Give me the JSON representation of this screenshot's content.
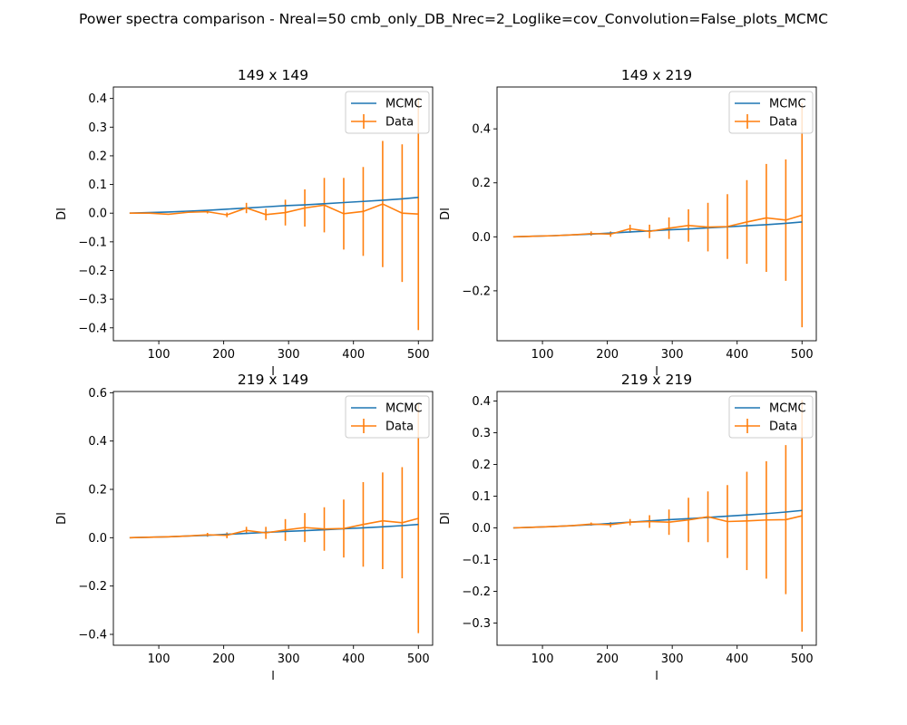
{
  "figure": {
    "suptitle": "Power spectra comparison - Nreal=50 cmb_only_DB_Nrec=2_Loglike=cov_Convolution=False_plots_MCMC",
    "colors": {
      "mcmc": "#1f77b4",
      "data": "#ff7f0e"
    }
  },
  "chart_data": [
    {
      "type": "line",
      "title": "149 x 149",
      "xlabel": "l",
      "ylabel": "Dl",
      "xlim": [
        30,
        522
      ],
      "ylim": [
        -0.445,
        0.44
      ],
      "xticks": [
        100,
        200,
        300,
        400,
        500
      ],
      "yticks": [
        -0.4,
        -0.3,
        -0.2,
        -0.1,
        0.0,
        0.1,
        0.2,
        0.3,
        0.4
      ],
      "ytick_labels": [
        "−0.4",
        "−0.3",
        "−0.2",
        "−0.1",
        "0.0",
        "0.1",
        "0.2",
        "0.3",
        "0.4"
      ],
      "legend": [
        "MCMC",
        "Data"
      ],
      "legend_loc": "upper right",
      "series": [
        {
          "name": "MCMC",
          "x": [
            55,
            85,
            115,
            145,
            175,
            205,
            235,
            265,
            295,
            325,
            355,
            385,
            415,
            445,
            475,
            500
          ],
          "y": [
            0.0,
            0.002,
            0.004,
            0.007,
            0.01,
            0.014,
            0.018,
            0.022,
            0.026,
            0.029,
            0.033,
            0.037,
            0.041,
            0.045,
            0.05,
            0.055
          ]
        },
        {
          "name": "Data",
          "x": [
            55,
            85,
            115,
            145,
            175,
            205,
            235,
            265,
            295,
            325,
            355,
            385,
            415,
            445,
            475,
            500
          ],
          "y": [
            0.0,
            0.0,
            -0.004,
            0.003,
            0.005,
            -0.006,
            0.018,
            -0.005,
            0.002,
            0.018,
            0.028,
            -0.002,
            0.006,
            0.032,
            0.0,
            -0.003
          ],
          "err": [
            0.0,
            0.0,
            0.0,
            0.0,
            0.006,
            0.008,
            0.018,
            0.02,
            0.045,
            0.065,
            0.095,
            0.125,
            0.155,
            0.22,
            0.24,
            0.405
          ]
        }
      ]
    },
    {
      "type": "line",
      "title": "149 x 219",
      "xlabel": "l",
      "ylabel": "Dl",
      "xlim": [
        30,
        522
      ],
      "ylim": [
        -0.385,
        0.555
      ],
      "xticks": [
        100,
        200,
        300,
        400,
        500
      ],
      "yticks": [
        -0.2,
        0.0,
        0.2,
        0.4
      ],
      "ytick_labels": [
        "−0.2",
        "0.0",
        "0.2",
        "0.4"
      ],
      "legend": [
        "MCMC",
        "Data"
      ],
      "legend_loc": "upper right",
      "series": [
        {
          "name": "MCMC",
          "x": [
            55,
            85,
            115,
            145,
            175,
            205,
            235,
            265,
            295,
            325,
            355,
            385,
            415,
            445,
            475,
            500
          ],
          "y": [
            0.0,
            0.002,
            0.004,
            0.007,
            0.01,
            0.014,
            0.018,
            0.022,
            0.026,
            0.029,
            0.033,
            0.037,
            0.041,
            0.045,
            0.05,
            0.055
          ]
        },
        {
          "name": "Data",
          "x": [
            55,
            85,
            115,
            145,
            175,
            205,
            235,
            265,
            295,
            325,
            355,
            385,
            415,
            445,
            475,
            500
          ],
          "y": [
            0.0,
            0.002,
            0.004,
            0.007,
            0.012,
            0.01,
            0.03,
            0.02,
            0.032,
            0.042,
            0.036,
            0.038,
            0.055,
            0.07,
            0.062,
            0.08
          ],
          "err": [
            0.0,
            0.0,
            0.0,
            0.0,
            0.008,
            0.01,
            0.015,
            0.025,
            0.04,
            0.06,
            0.09,
            0.12,
            0.155,
            0.2,
            0.225,
            0.415
          ]
        }
      ]
    },
    {
      "type": "line",
      "title": "219 x 149",
      "xlabel": "l",
      "ylabel": "Dl",
      "xlim": [
        30,
        522
      ],
      "ylim": [
        -0.445,
        0.605
      ],
      "xticks": [
        100,
        200,
        300,
        400,
        500
      ],
      "yticks": [
        -0.4,
        -0.2,
        0.0,
        0.2,
        0.4,
        0.6
      ],
      "ytick_labels": [
        "−0.4",
        "−0.2",
        "0.0",
        "0.2",
        "0.4",
        "0.6"
      ],
      "legend": [
        "MCMC",
        "Data"
      ],
      "legend_loc": "upper right",
      "series": [
        {
          "name": "MCMC",
          "x": [
            55,
            85,
            115,
            145,
            175,
            205,
            235,
            265,
            295,
            325,
            355,
            385,
            415,
            445,
            475,
            500
          ],
          "y": [
            0.0,
            0.002,
            0.004,
            0.007,
            0.01,
            0.014,
            0.018,
            0.022,
            0.026,
            0.029,
            0.033,
            0.037,
            0.041,
            0.045,
            0.05,
            0.055
          ]
        },
        {
          "name": "Data",
          "x": [
            55,
            85,
            115,
            145,
            175,
            205,
            235,
            265,
            295,
            325,
            355,
            385,
            415,
            445,
            475,
            500
          ],
          "y": [
            0.0,
            0.002,
            0.004,
            0.007,
            0.012,
            0.01,
            0.03,
            0.02,
            0.032,
            0.042,
            0.036,
            0.038,
            0.055,
            0.07,
            0.062,
            0.08
          ],
          "err": [
            0.0,
            0.0,
            0.0,
            0.0,
            0.008,
            0.012,
            0.015,
            0.025,
            0.045,
            0.06,
            0.09,
            0.12,
            0.175,
            0.2,
            0.23,
            0.475
          ]
        }
      ]
    },
    {
      "type": "line",
      "title": "219 x 219",
      "xlabel": "l",
      "ylabel": "Dl",
      "xlim": [
        30,
        522
      ],
      "ylim": [
        -0.37,
        0.43
      ],
      "xticks": [
        100,
        200,
        300,
        400,
        500
      ],
      "yticks": [
        -0.3,
        -0.2,
        -0.1,
        0.0,
        0.1,
        0.2,
        0.3,
        0.4
      ],
      "ytick_labels": [
        "−0.3",
        "−0.2",
        "−0.1",
        "0.0",
        "0.1",
        "0.2",
        "0.3",
        "0.4"
      ],
      "legend": [
        "MCMC",
        "Data"
      ],
      "legend_loc": "upper right",
      "series": [
        {
          "name": "MCMC",
          "x": [
            55,
            85,
            115,
            145,
            175,
            205,
            235,
            265,
            295,
            325,
            355,
            385,
            415,
            445,
            475,
            500
          ],
          "y": [
            0.0,
            0.002,
            0.004,
            0.007,
            0.01,
            0.014,
            0.018,
            0.022,
            0.026,
            0.029,
            0.033,
            0.037,
            0.041,
            0.045,
            0.05,
            0.055
          ]
        },
        {
          "name": "Data",
          "x": [
            55,
            85,
            115,
            145,
            175,
            205,
            235,
            265,
            295,
            325,
            355,
            385,
            415,
            445,
            475,
            500
          ],
          "y": [
            0.0,
            0.002,
            0.004,
            0.007,
            0.012,
            0.01,
            0.018,
            0.02,
            0.018,
            0.025,
            0.035,
            0.02,
            0.022,
            0.025,
            0.026,
            0.038
          ],
          "err": [
            0.0,
            0.0,
            0.0,
            0.0,
            0.005,
            0.008,
            0.01,
            0.02,
            0.04,
            0.07,
            0.08,
            0.115,
            0.155,
            0.185,
            0.235,
            0.365
          ]
        }
      ]
    }
  ]
}
